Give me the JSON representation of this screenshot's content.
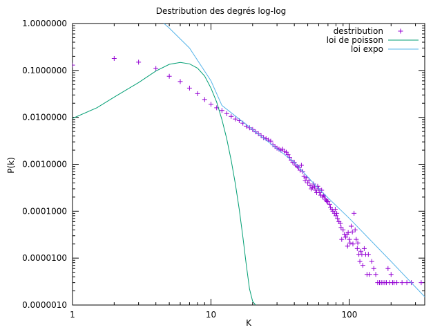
{
  "chart_data": {
    "type": "scatter",
    "title": "Destribution des degrés log-log",
    "xlabel": "K",
    "ylabel": "P(k)",
    "xscale": "log",
    "yscale": "log",
    "xlim": [
      1,
      350
    ],
    "ylim": [
      1e-06,
      1
    ],
    "x_ticks": [
      "1",
      "10",
      "100"
    ],
    "y_ticks": [
      "0.0000010",
      "0.0000100",
      "0.0001000",
      "0.0010000",
      "0.0100000",
      "0.1000000",
      "1.0000000"
    ],
    "legend_position": "top-right",
    "grid": false,
    "series": [
      {
        "name": "destribution",
        "kind": "points",
        "marker": "plus",
        "color": "#9400d3",
        "points": [
          [
            1,
            0.13
          ],
          [
            2,
            0.18
          ],
          [
            3,
            0.15
          ],
          [
            4,
            0.11
          ],
          [
            5,
            0.075
          ],
          [
            6,
            0.058
          ],
          [
            7,
            0.042
          ],
          [
            8,
            0.032
          ],
          [
            9,
            0.024
          ],
          [
            10,
            0.019
          ],
          [
            11,
            0.016
          ],
          [
            12,
            0.014
          ],
          [
            13,
            0.012
          ],
          [
            14,
            0.0105
          ],
          [
            15,
            0.0092
          ],
          [
            16,
            0.0085
          ],
          [
            17,
            0.0075
          ],
          [
            18,
            0.0065
          ],
          [
            19,
            0.006
          ],
          [
            20,
            0.0055
          ],
          [
            21,
            0.0049
          ],
          [
            22,
            0.0045
          ],
          [
            23,
            0.0041
          ],
          [
            24,
            0.0037
          ],
          [
            25,
            0.0035
          ],
          [
            26,
            0.0033
          ],
          [
            27,
            0.0031
          ],
          [
            28,
            0.0026
          ],
          [
            29,
            0.0024
          ],
          [
            30,
            0.0022
          ],
          [
            31,
            0.0021
          ],
          [
            32,
            0.002
          ],
          [
            33,
            0.0021
          ],
          [
            34,
            0.0019
          ],
          [
            35,
            0.0018
          ],
          [
            36,
            0.0016
          ],
          [
            37,
            0.0014
          ],
          [
            38,
            0.0012
          ],
          [
            39,
            0.0011
          ],
          [
            40,
            0.0011
          ],
          [
            41,
            0.00095
          ],
          [
            42,
            0.0009
          ],
          [
            43,
            0.00085
          ],
          [
            44,
            0.00075
          ],
          [
            45,
            0.00095
          ],
          [
            46,
            0.0007
          ],
          [
            47,
            0.00055
          ],
          [
            48,
            0.00045
          ],
          [
            49,
            0.00052
          ],
          [
            50,
            0.0004
          ],
          [
            51,
            0.00045
          ],
          [
            52,
            0.00035
          ],
          [
            53,
            0.0003
          ],
          [
            54,
            0.00032
          ],
          [
            55,
            0.00038
          ],
          [
            56,
            0.00033
          ],
          [
            57,
            0.00028
          ],
          [
            58,
            0.00025
          ],
          [
            59,
            0.00034
          ],
          [
            60,
            0.0003
          ],
          [
            61,
            0.00025
          ],
          [
            62,
            0.00022
          ],
          [
            63,
            0.00028
          ],
          [
            64,
            0.0002
          ],
          [
            65,
            0.00022
          ],
          [
            66,
            0.00021
          ],
          [
            67,
            0.00018
          ],
          [
            68,
            0.00017
          ],
          [
            69,
            0.00016
          ],
          [
            70,
            0.00016
          ],
          [
            72,
            0.00014
          ],
          [
            73,
            0.00012
          ],
          [
            75,
            0.00011
          ],
          [
            76,
            0.0001
          ],
          [
            78,
            9e-05
          ],
          [
            79,
            0.00011
          ],
          [
            80,
            8e-05
          ],
          [
            81,
            9e-05
          ],
          [
            82,
            7e-05
          ],
          [
            84,
            6e-05
          ],
          [
            86,
            5.5e-05
          ],
          [
            87,
            4.5e-05
          ],
          [
            88,
            2.5e-05
          ],
          [
            90,
            4e-05
          ],
          [
            92,
            3.2e-05
          ],
          [
            94,
            2.8e-05
          ],
          [
            96,
            3.2e-05
          ],
          [
            97,
            1.8e-05
          ],
          [
            98,
            3.5e-05
          ],
          [
            100,
            2.5e-05
          ],
          [
            101,
            2.1e-05
          ],
          [
            103,
            4.8e-05
          ],
          [
            105,
            3.6e-05
          ],
          [
            106,
            2e-05
          ],
          [
            108,
            9e-05
          ],
          [
            110,
            4e-05
          ],
          [
            112,
            2.5e-05
          ],
          [
            114,
            1.6e-05
          ],
          [
            115,
            2.1e-05
          ],
          [
            117,
            1.2e-05
          ],
          [
            119,
            8.5e-06
          ],
          [
            121,
            1.4e-05
          ],
          [
            123,
            1.2e-05
          ],
          [
            125,
            7e-06
          ],
          [
            128,
            1.6e-05
          ],
          [
            131,
            1.2e-05
          ],
          [
            134,
            4.5e-06
          ],
          [
            137,
            1.2e-05
          ],
          [
            140,
            4.5e-06
          ],
          [
            145,
            8.5e-06
          ],
          [
            150,
            6e-06
          ],
          [
            155,
            4.5e-06
          ],
          [
            160,
            3e-06
          ],
          [
            165,
            3e-06
          ],
          [
            170,
            3e-06
          ],
          [
            175,
            3e-06
          ],
          [
            180,
            3e-06
          ],
          [
            185,
            3e-06
          ],
          [
            190,
            6e-06
          ],
          [
            195,
            3e-06
          ],
          [
            200,
            4.5e-06
          ],
          [
            205,
            3e-06
          ],
          [
            210,
            3e-06
          ],
          [
            220,
            3e-06
          ],
          [
            240,
            3e-06
          ],
          [
            260,
            3e-06
          ],
          [
            280,
            3e-06
          ],
          [
            330,
            3e-06
          ]
        ]
      },
      {
        "name": "loi de poisson",
        "kind": "line",
        "color": "#009e73",
        "points": [
          [
            1,
            0.0095
          ],
          [
            1.5,
            0.016
          ],
          [
            2,
            0.027
          ],
          [
            3,
            0.055
          ],
          [
            4,
            0.097
          ],
          [
            5,
            0.135
          ],
          [
            6,
            0.148
          ],
          [
            7,
            0.138
          ],
          [
            8,
            0.112
          ],
          [
            9,
            0.076
          ],
          [
            10,
            0.042
          ],
          [
            11,
            0.021
          ],
          [
            12,
            0.009
          ],
          [
            13,
            0.0035
          ],
          [
            14,
            0.0012
          ],
          [
            15,
            0.00038
          ],
          [
            16,
            0.00011
          ],
          [
            17,
            2.8e-05
          ],
          [
            18,
            7.2e-06
          ],
          [
            19,
            2.2e-06
          ],
          [
            20,
            1.2e-06
          ],
          [
            21,
            1e-06
          ]
        ]
      },
      {
        "name": "loi expo",
        "kind": "line",
        "color": "#56b4e9",
        "points": [
          [
            4.5,
            1.05
          ],
          [
            5,
            0.8
          ],
          [
            7,
            0.3
          ],
          [
            10,
            0.06
          ],
          [
            12,
            0.018
          ],
          [
            20,
            0.0055
          ],
          [
            40,
            0.0011
          ],
          [
            60,
            0.0003
          ],
          [
            100,
            7e-05
          ],
          [
            200,
            8.5e-06
          ],
          [
            350,
            1.5e-06
          ]
        ]
      }
    ]
  }
}
